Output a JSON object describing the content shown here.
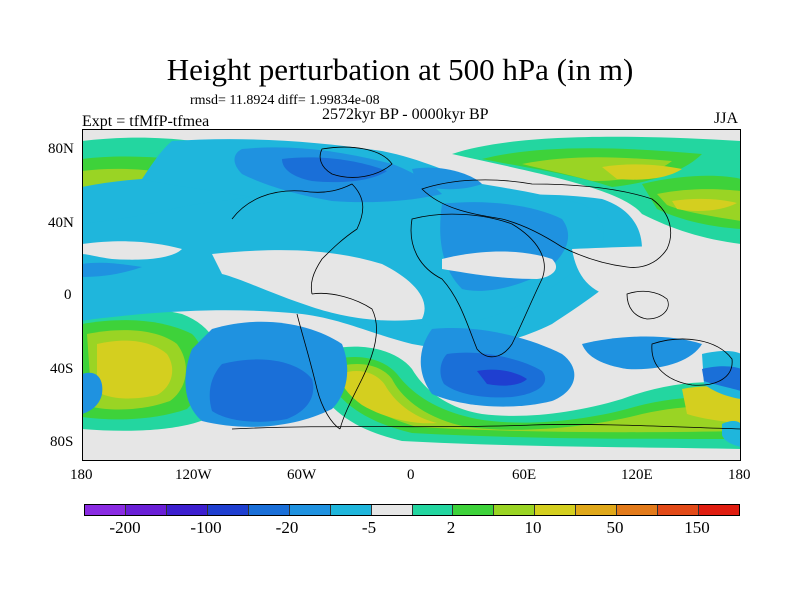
{
  "title": "Height perturbation at 500 hPa (in m)",
  "stats": "rmsd= 11.8924 diff= 1.99834e-08",
  "period": "2572kyr BP - 0000kyr BP",
  "experiment": "Expt = tfMfP-tfmea",
  "season": "JJA",
  "map": {
    "lat_labels": [
      "80N",
      "40N",
      "0",
      "40S",
      "80S"
    ],
    "lon_labels": [
      "180",
      "120W",
      "60W",
      "0",
      "60E",
      "120E",
      "180"
    ],
    "ocean_neutral_color": "#e6e6e6"
  },
  "colorbar": {
    "colors": [
      "#8a2be2",
      "#6a1fd6",
      "#3d1fcf",
      "#1f3fd0",
      "#1a6fd8",
      "#1f92e0",
      "#1fb6dc",
      "#e6e6e6",
      "#23d6a0",
      "#3ed23a",
      "#9ad424",
      "#d4cf1f",
      "#e0a81a",
      "#e27a1a",
      "#e24a18",
      "#e01d10"
    ],
    "labels": [
      "-200",
      "-100",
      "-20",
      "-5",
      "2",
      "10",
      "50",
      "150"
    ]
  }
}
